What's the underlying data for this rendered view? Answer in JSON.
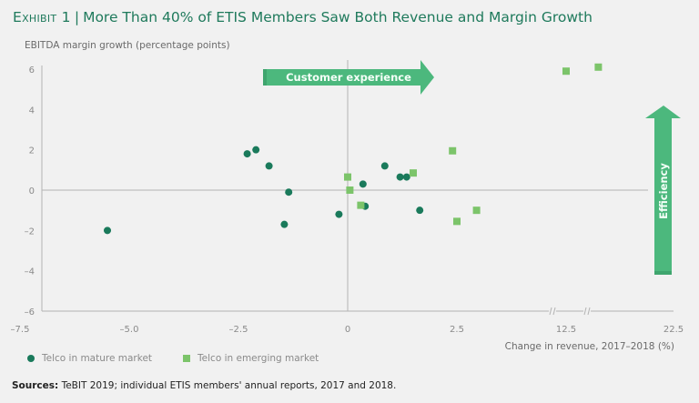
{
  "title": {
    "exhibit": "Exhibit 1",
    "separator": "|",
    "text": "More Than 40% of ETIS Members Saw Both Revenue and Margin Growth"
  },
  "colors": {
    "title": "#1f7a5c",
    "mature": "#1a7a5b",
    "emerging": "#7cc46a",
    "arrow": "#4cb87d"
  },
  "annotations": {
    "customer_experience": "Customer experience",
    "efficiency": "Efficiency"
  },
  "legend": {
    "mature": "Telco in mature market",
    "emerging": "Telco in emerging market"
  },
  "sources": {
    "label": "Sources:",
    "text": "TeBIT 2019; individual ETIS members' annual reports, 2017 and 2018."
  },
  "chart_data": {
    "type": "scatter",
    "title": "More Than 40% of ETIS Members Saw Both Revenue and Margin Growth",
    "xlabel": "Change in revenue, 2017–2018 (%)",
    "ylabel": "EBITDA margin growth (percentage points)",
    "xlim": [
      -7.5,
      22.5
    ],
    "ylim": [
      -6,
      6
    ],
    "x_ticks": [
      "–7.5",
      "–5.0",
      "–2.5",
      "0",
      "2.5",
      "12.5",
      "22.5"
    ],
    "y_ticks": [
      "6",
      "4",
      "2",
      "0",
      "–2",
      "–4",
      "–6"
    ],
    "x_axis_breaks": "between 2.5 and 12.5, and between 12.5 and 22.5",
    "grid": false,
    "legend_position": "bottom-left",
    "series": [
      {
        "name": "Telco in mature market",
        "marker": "circle",
        "points": [
          {
            "x": -5.5,
            "y": -2.0
          },
          {
            "x": -2.3,
            "y": 1.8
          },
          {
            "x": -2.1,
            "y": 2.0
          },
          {
            "x": -1.8,
            "y": 1.2
          },
          {
            "x": -1.35,
            "y": -0.1
          },
          {
            "x": -1.45,
            "y": -1.7
          },
          {
            "x": -0.2,
            "y": -1.2
          },
          {
            "x": 0.35,
            "y": 0.3
          },
          {
            "x": 0.4,
            "y": -0.8
          },
          {
            "x": 0.85,
            "y": 1.2
          },
          {
            "x": 1.2,
            "y": 0.65
          },
          {
            "x": 1.35,
            "y": 0.65
          },
          {
            "x": 1.65,
            "y": -1.0
          }
        ]
      },
      {
        "name": "Telco in emerging market",
        "marker": "square",
        "points": [
          {
            "x": 0.0,
            "y": 0.65
          },
          {
            "x": 0.05,
            "y": 0.0
          },
          {
            "x": 0.3,
            "y": -0.75
          },
          {
            "x": 1.5,
            "y": 0.85
          },
          {
            "x": 2.4,
            "y": 1.95
          },
          {
            "x": 2.5,
            "y": -1.55
          },
          {
            "x": 4.3,
            "y": -1.0
          },
          {
            "x": 12.5,
            "y": 5.9
          },
          {
            "x": 15.5,
            "y": 6.1
          }
        ]
      }
    ]
  }
}
